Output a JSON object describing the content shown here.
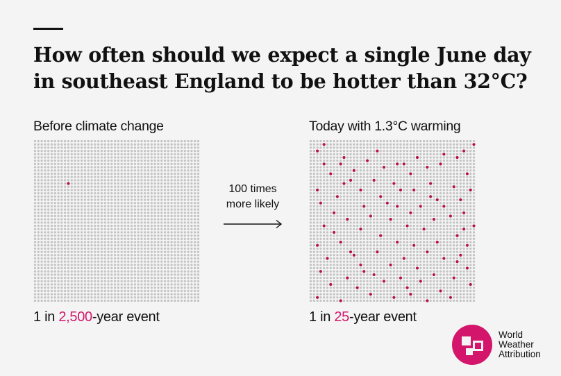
{
  "title": {
    "line1": "How often should we expect a single June day",
    "line2": "in southeast England to be hotter than 32°C?"
  },
  "left_panel": {
    "heading": "Before climate change",
    "caption_prefix": "1 in ",
    "caption_highlight": "2,500",
    "caption_suffix": "-year event"
  },
  "right_panel": {
    "heading": "Today with 1.3°C warming",
    "caption_prefix": "1 in ",
    "caption_highlight": "25",
    "caption_suffix": "-year event"
  },
  "comparison": {
    "line1": "100 times",
    "line2": "more likely"
  },
  "logo": {
    "line1": "World",
    "line2": "Weather",
    "line3": "Attribution"
  },
  "colors": {
    "background": "#f4f4f4",
    "text": "#111111",
    "accent": "#d3166c",
    "dot": "#c4c4c4",
    "highlight_dot": "#b3124f"
  },
  "chart_data": [
    {
      "type": "dot-grid",
      "grid": {
        "cols": 50,
        "rows": 50
      },
      "total_dots": 2500,
      "highlighted_count": 1,
      "highlighted": [
        [
          10,
          13
        ]
      ]
    },
    {
      "type": "dot-grid",
      "grid": {
        "cols": 50,
        "rows": 50
      },
      "total_dots": 2500,
      "highlighted_count": 100,
      "highlighted": [
        [
          4,
          1
        ],
        [
          20,
          3
        ],
        [
          49,
          1
        ],
        [
          2,
          3
        ],
        [
          40,
          4
        ],
        [
          46,
          3
        ],
        [
          10,
          5
        ],
        [
          32,
          5
        ],
        [
          44,
          5
        ],
        [
          17,
          6
        ],
        [
          4,
          7
        ],
        [
          9,
          7
        ],
        [
          26,
          7
        ],
        [
          28,
          7
        ],
        [
          39,
          7
        ],
        [
          22,
          8
        ],
        [
          35,
          8
        ],
        [
          13,
          9
        ],
        [
          6,
          10
        ],
        [
          30,
          10
        ],
        [
          47,
          10
        ],
        [
          12,
          12
        ],
        [
          19,
          12
        ],
        [
          10,
          13
        ],
        [
          25,
          13
        ],
        [
          36,
          13
        ],
        [
          43,
          14
        ],
        [
          2,
          15
        ],
        [
          15,
          15
        ],
        [
          27,
          15
        ],
        [
          31,
          15
        ],
        [
          48,
          15
        ],
        [
          8,
          17
        ],
        [
          21,
          17
        ],
        [
          36,
          17
        ],
        [
          45,
          18
        ],
        [
          3,
          19
        ],
        [
          16,
          20
        ],
        [
          26,
          20
        ],
        [
          33,
          20
        ],
        [
          40,
          20
        ],
        [
          7,
          22
        ],
        [
          30,
          22
        ],
        [
          46,
          22
        ],
        [
          18,
          23
        ],
        [
          42,
          23
        ],
        [
          11,
          24
        ],
        [
          24,
          24
        ],
        [
          37,
          24
        ],
        [
          4,
          26
        ],
        [
          29,
          26
        ],
        [
          49,
          26
        ],
        [
          15,
          27
        ],
        [
          34,
          27
        ],
        [
          21,
          29
        ],
        [
          44,
          29
        ],
        [
          9,
          31
        ],
        [
          26,
          31
        ],
        [
          38,
          31
        ],
        [
          2,
          32
        ],
        [
          31,
          32
        ],
        [
          47,
          32
        ],
        [
          12,
          34
        ],
        [
          20,
          34
        ],
        [
          35,
          34
        ],
        [
          45,
          35
        ],
        [
          5,
          36
        ],
        [
          28,
          36
        ],
        [
          40,
          36
        ],
        [
          15,
          38
        ],
        [
          24,
          38
        ],
        [
          32,
          39
        ],
        [
          47,
          39
        ],
        [
          3,
          40
        ],
        [
          19,
          41
        ],
        [
          37,
          41
        ],
        [
          11,
          42
        ],
        [
          27,
          42
        ],
        [
          43,
          42
        ],
        [
          22,
          43
        ],
        [
          33,
          43
        ],
        [
          6,
          44
        ],
        [
          48,
          44
        ],
        [
          14,
          45
        ],
        [
          29,
          45
        ],
        [
          39,
          46
        ],
        [
          18,
          47
        ],
        [
          2,
          48
        ],
        [
          25,
          48
        ],
        [
          42,
          48
        ],
        [
          9,
          49
        ],
        [
          35,
          49
        ],
        [
          16,
          40
        ],
        [
          44,
          37
        ],
        [
          7,
          28
        ],
        [
          38,
          18
        ],
        [
          13,
          35
        ],
        [
          30,
          47
        ],
        [
          23,
          19
        ],
        [
          46,
          27
        ]
      ]
    }
  ]
}
